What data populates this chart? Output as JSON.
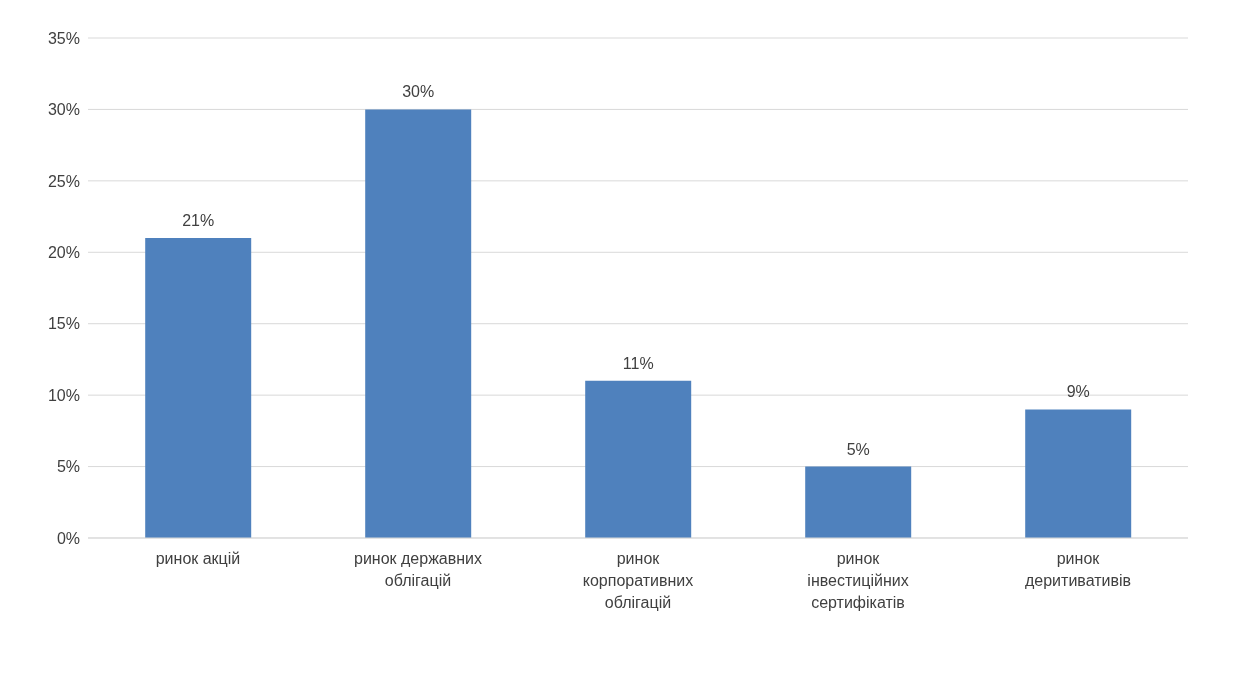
{
  "chart_data": {
    "type": "bar",
    "categories": [
      "ринок акцій",
      "ринок державних облігацій",
      "ринок корпоративних облігацій",
      "ринок інвестиційних сертифікатів",
      "ринок деритивативів"
    ],
    "values": [
      21,
      30,
      11,
      5,
      9
    ],
    "value_labels": [
      "21%",
      "30%",
      "11%",
      "5%",
      "9%"
    ],
    "color": "#4f81bd",
    "ylim": [
      0,
      35
    ],
    "yticks": [
      {
        "value": 0,
        "label": "0%"
      },
      {
        "value": 5,
        "label": "5%"
      },
      {
        "value": 10,
        "label": "10%"
      },
      {
        "value": 15,
        "label": "15%"
      },
      {
        "value": 20,
        "label": "20%"
      },
      {
        "value": 25,
        "label": "25%"
      },
      {
        "value": 30,
        "label": "30%"
      },
      {
        "value": 35,
        "label": "35%"
      }
    ],
    "grid": "y"
  }
}
